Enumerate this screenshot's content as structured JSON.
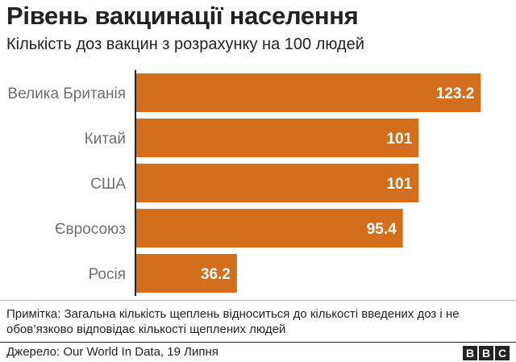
{
  "header": {
    "title": "Рівень вакцинації населення",
    "subtitle": "Кількість доз вакцин з розрахунку на 100 людей"
  },
  "chart_data": {
    "type": "bar",
    "orientation": "horizontal",
    "title": "Рівень вакцинації населення",
    "subtitle": "Кількість доз вакцин з розрахунку на 100 людей",
    "categories": [
      "Велика Британія",
      "Китай",
      "США",
      "Євросоюз",
      "Росія"
    ],
    "values": [
      123.2,
      101,
      101,
      95.4,
      36.2
    ],
    "value_labels": [
      "123.2",
      "101",
      "101",
      "95.4",
      "36.2"
    ],
    "xlim": [
      0,
      130
    ],
    "grid": false,
    "legend": "none",
    "bar_color": "#d26e1c",
    "label_color": "#ffffff",
    "axis_color": "#222222",
    "category_color": "#6e6e6e"
  },
  "footer": {
    "note": "Примітка: Загальна кількість щеплень відноситься до кількості введених доз і не обов’язково відповідає кількості щеплених людей",
    "source": "Джерело: Our World In Data, 19 Липня",
    "logo_letters": [
      "B",
      "B",
      "C"
    ]
  }
}
